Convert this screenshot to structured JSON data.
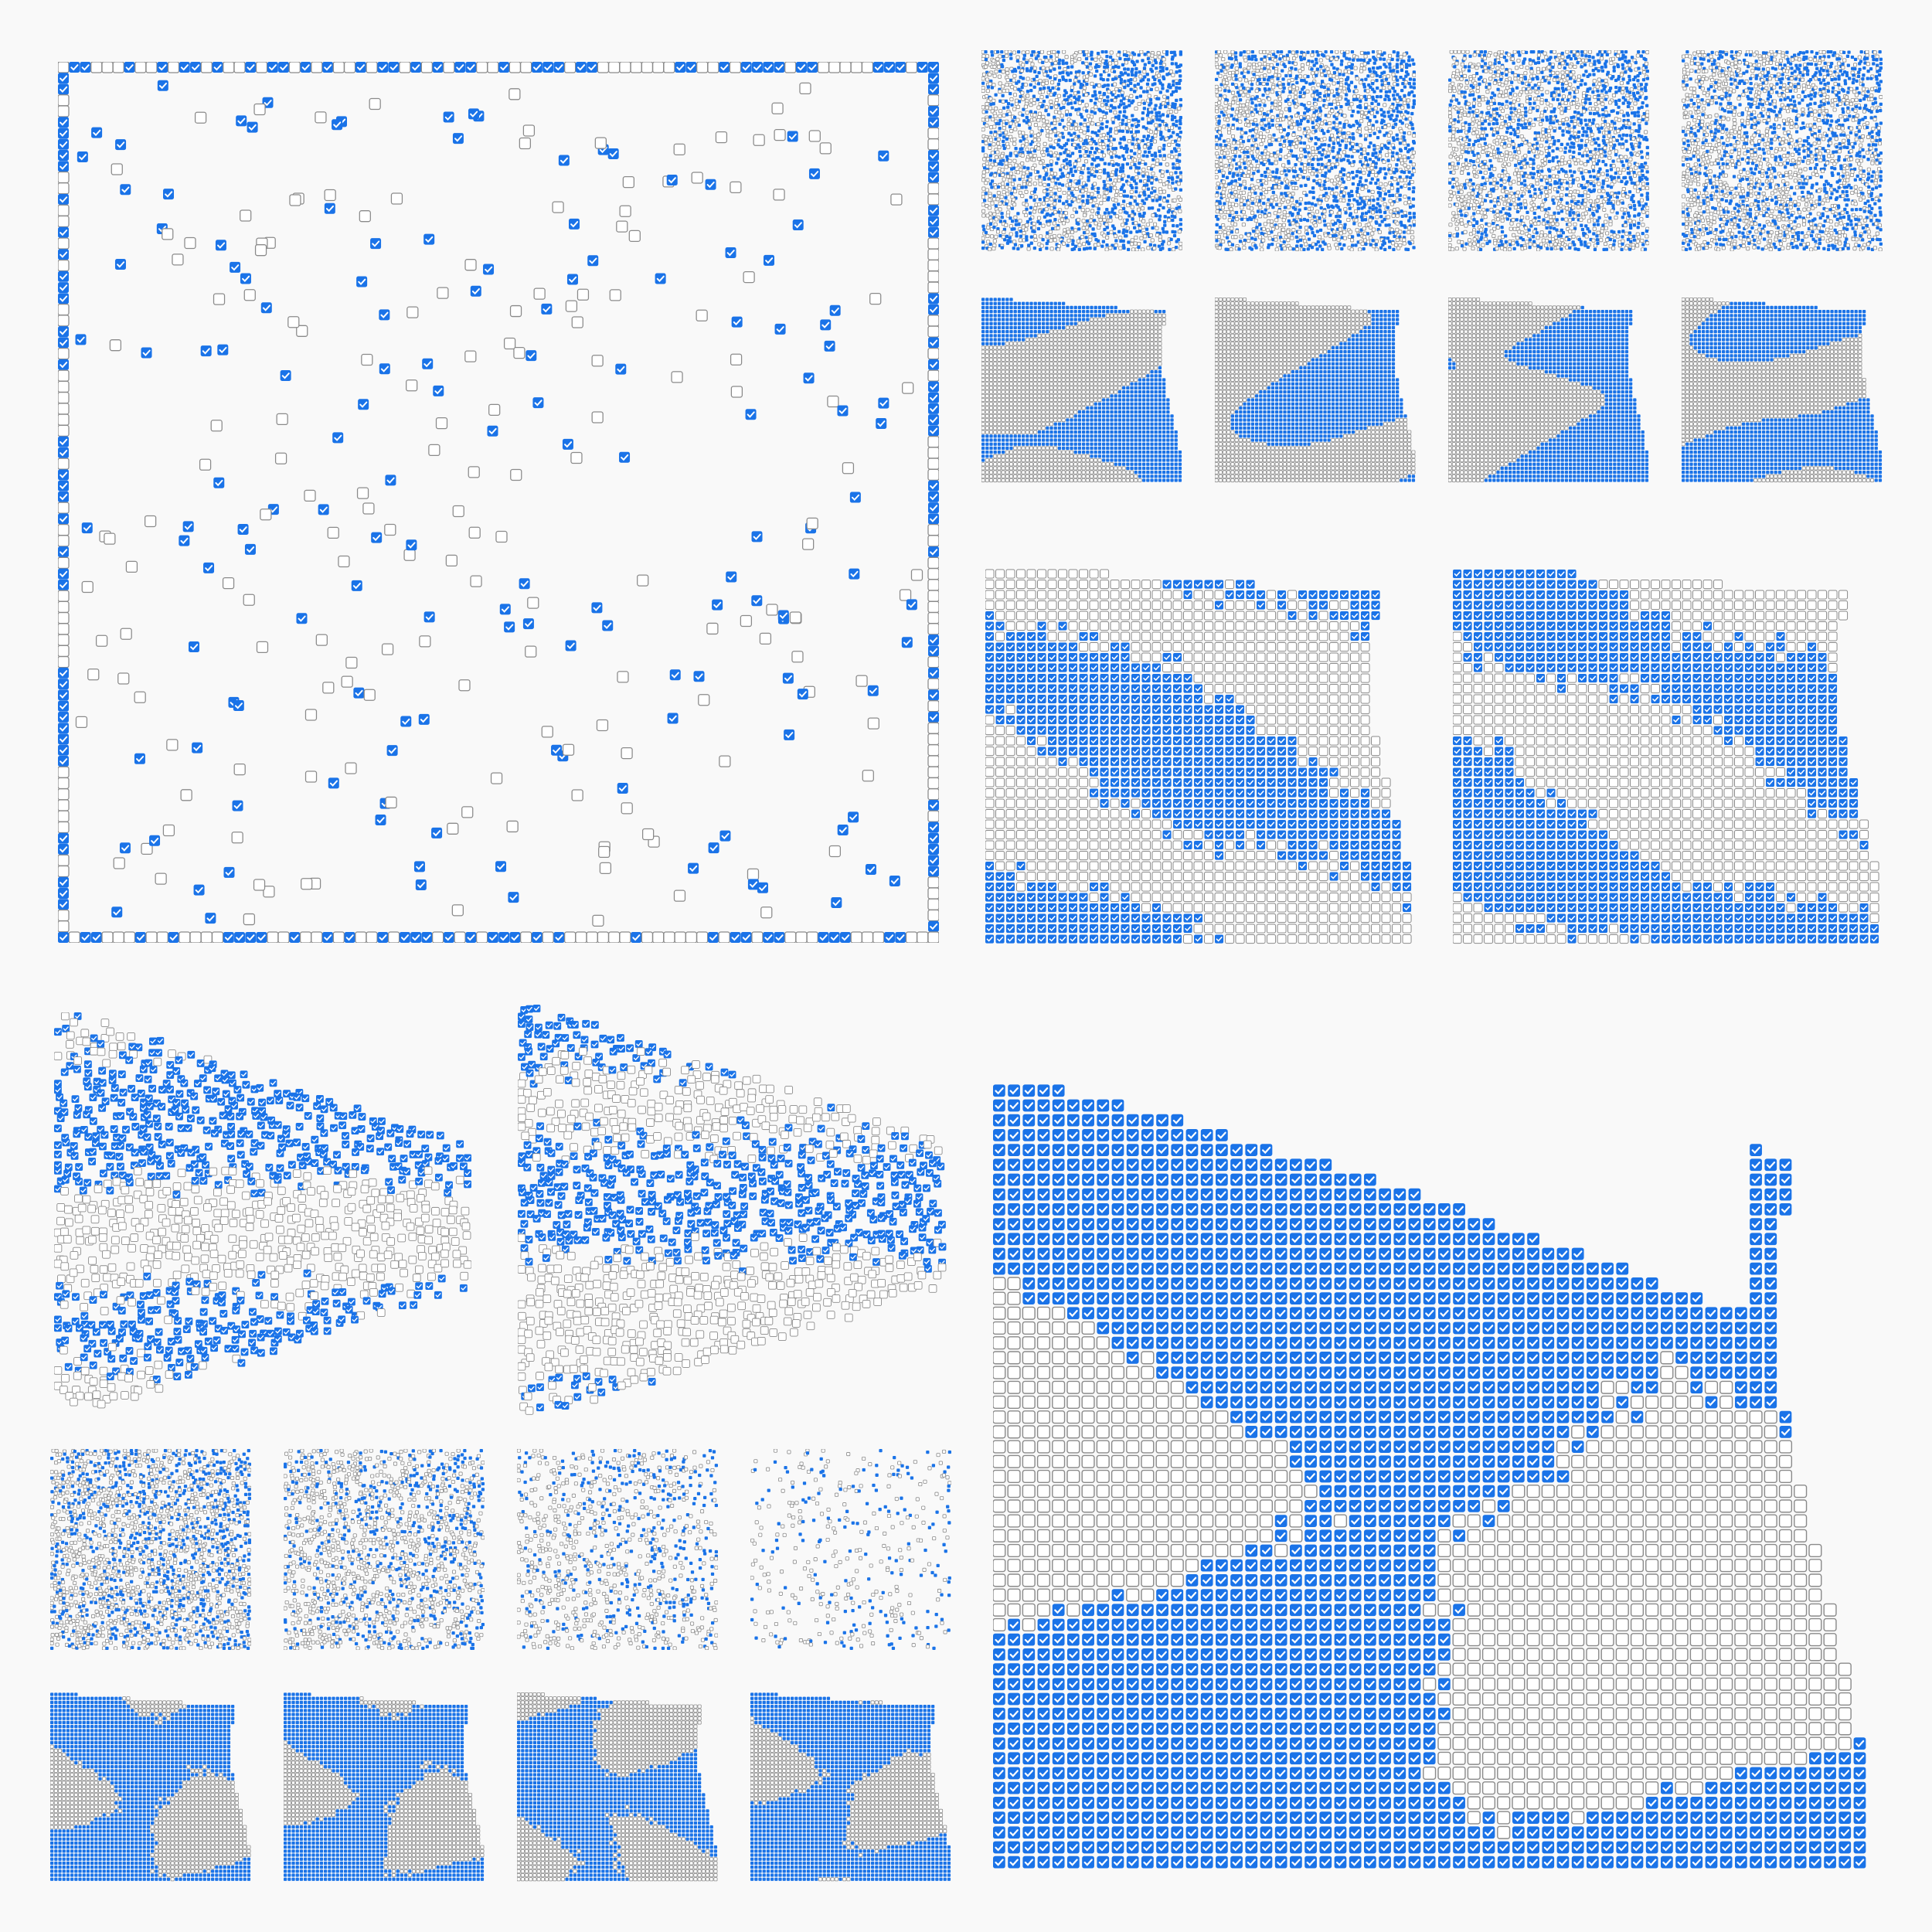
{
  "colors": {
    "background": "#f9f9f9",
    "checked_fill": "#1a73e8",
    "checked_mark": "#ffffff",
    "unchecked_stroke": "#8a8a8a",
    "unchecked_fill": "#ffffff"
  },
  "icons": {
    "checked": "checked-checkbox-icon",
    "unchecked": "unchecked-checkbox-icon"
  },
  "panels": [
    {
      "id": "large-scatter-grid",
      "pattern": "sparse-with-border",
      "density": 0.35,
      "checked_ratio": 0.45
    },
    {
      "id": "scatter-dots-1",
      "pattern": "dense-scatter",
      "density": 0.8,
      "checked_ratio": 0.6
    },
    {
      "id": "scatter-dots-2",
      "pattern": "dense-scatter",
      "density": 0.8,
      "checked_ratio": 0.6
    },
    {
      "id": "scatter-dots-3",
      "pattern": "dense-scatter",
      "density": 0.8,
      "checked_ratio": 0.55
    },
    {
      "id": "scatter-dots-4",
      "pattern": "dense-scatter",
      "density": 0.8,
      "checked_ratio": 0.55
    },
    {
      "id": "grid-blob-1",
      "pattern": "stripes",
      "density": 1.0,
      "checked_ratio": 0.55
    },
    {
      "id": "grid-blob-2",
      "pattern": "stripes",
      "density": 1.0,
      "checked_ratio": 0.55
    },
    {
      "id": "grid-blob-3",
      "pattern": "stripes",
      "density": 1.0,
      "checked_ratio": 0.5
    },
    {
      "id": "grid-blob-4",
      "pattern": "stripes",
      "density": 1.0,
      "checked_ratio": 0.55
    },
    {
      "id": "medium-grid-1",
      "pattern": "diagonal-stripes",
      "density": 1.0,
      "checked_ratio": 0.5
    },
    {
      "id": "medium-grid-2",
      "pattern": "diagonal-stripes",
      "density": 1.0,
      "checked_ratio": 0.55
    },
    {
      "id": "wedge-scatter-1",
      "pattern": "wedge-scatter",
      "density": 0.8,
      "checked_ratio": 0.55
    },
    {
      "id": "wedge-scatter-2",
      "pattern": "wedge-scatter",
      "density": 0.8,
      "checked_ratio": 0.5
    },
    {
      "id": "small-scatter-1",
      "pattern": "dense-scatter",
      "density": 0.7,
      "checked_ratio": 0.5
    },
    {
      "id": "small-scatter-2",
      "pattern": "dense-scatter",
      "density": 0.55,
      "checked_ratio": 0.4
    },
    {
      "id": "small-scatter-3",
      "pattern": "dense-scatter",
      "density": 0.35,
      "checked_ratio": 0.4
    },
    {
      "id": "small-scatter-4",
      "pattern": "dense-scatter",
      "density": 0.15,
      "checked_ratio": 0.45
    },
    {
      "id": "small-blob-1",
      "pattern": "swirl",
      "density": 1.0,
      "checked_ratio": 0.6
    },
    {
      "id": "small-blob-2",
      "pattern": "swirl",
      "density": 1.0,
      "checked_ratio": 0.6
    },
    {
      "id": "small-blob-3",
      "pattern": "swirl",
      "density": 1.0,
      "checked_ratio": 0.55
    },
    {
      "id": "small-blob-4",
      "pattern": "swirl",
      "density": 1.0,
      "checked_ratio": 0.5
    },
    {
      "id": "large-checkbox-grid",
      "pattern": "large-swirl",
      "density": 1.0,
      "checked_ratio": 0.55
    }
  ]
}
